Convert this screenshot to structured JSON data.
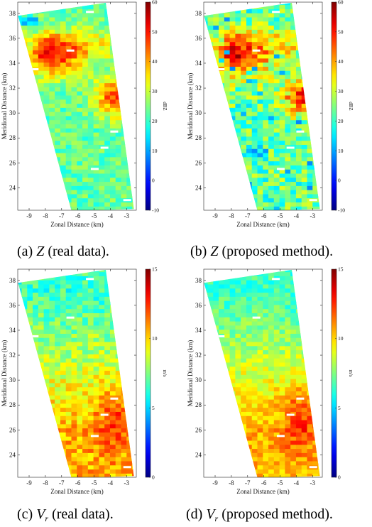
{
  "captions": {
    "a": {
      "prefix": "(a) ",
      "var": "Z",
      "sub": "",
      "suffix": " (real data)."
    },
    "b": {
      "prefix": "(b) ",
      "var": "Z",
      "sub": "",
      "suffix": " (proposed method)."
    },
    "c": {
      "prefix": "(c) ",
      "var": "V",
      "sub": "r",
      "suffix": " (real data)."
    },
    "d": {
      "prefix": "(d) ",
      "var": "V",
      "sub": "r",
      "suffix": " (proposed method)."
    }
  },
  "chart_data": [
    {
      "id": "a",
      "type": "heatmap",
      "variable": "reflectivity",
      "xlabel": "Zonal Distance (km)",
      "ylabel": "Meridional Distance (km)",
      "xticks": [
        -9,
        -8,
        -7,
        -6,
        -5,
        -4,
        -3
      ],
      "yticks": [
        24,
        26,
        28,
        30,
        32,
        34,
        36,
        38
      ],
      "xlim": [
        -9.7,
        -2.4
      ],
      "ylim": [
        22.2,
        38.9
      ],
      "colorbar": {
        "unit": "dBZ",
        "range": [
          -10,
          60
        ],
        "ticks": [
          -10,
          0,
          10,
          20,
          30,
          40,
          50,
          60
        ]
      },
      "colors": {
        "low": "#00008f",
        "high": "#800000",
        "colormap": "jet"
      },
      "field": {
        "background_dBZ": 23,
        "max_dBZ": 52,
        "core_centers_km": [
          [
            -7.5,
            34.5
          ],
          [
            -3.6,
            31.3
          ]
        ],
        "noise": "moderate"
      }
    },
    {
      "id": "b",
      "type": "heatmap",
      "variable": "reflectivity",
      "xlabel": "Zonal Distance (km)",
      "ylabel": "Meridional Distance (km)",
      "xticks": [
        -9,
        -8,
        -7,
        -6,
        -5,
        -4,
        -3
      ],
      "yticks": [
        24,
        26,
        28,
        30,
        32,
        34,
        36,
        38
      ],
      "xlim": [
        -9.7,
        -2.4
      ],
      "ylim": [
        22.2,
        38.9
      ],
      "colorbar": {
        "unit": "dBZ",
        "range": [
          -10,
          60
        ],
        "ticks": [
          -10,
          0,
          10,
          20,
          30,
          40,
          50,
          60
        ]
      },
      "colors": {
        "low": "#00008f",
        "high": "#800000",
        "colormap": "jet"
      },
      "field": {
        "background_dBZ": 23,
        "max_dBZ": 52,
        "core_centers_km": [
          [
            -7.5,
            34.5
          ],
          [
            -3.6,
            31.3
          ]
        ],
        "noise": "high"
      }
    },
    {
      "id": "c",
      "type": "heatmap",
      "variable": "radial velocity",
      "xlabel": "Zonal Distance (km)",
      "ylabel": "Meridional Distance (km)",
      "xticks": [
        -9,
        -8,
        -7,
        -6,
        -5,
        -4,
        -3
      ],
      "yticks": [
        24,
        26,
        28,
        30,
        32,
        34,
        36,
        38
      ],
      "xlim": [
        -9.7,
        -2.4
      ],
      "ylim": [
        22.2,
        38.9
      ],
      "colorbar": {
        "unit": "m/s",
        "range": [
          0,
          15
        ],
        "ticks": [
          0,
          5,
          10,
          15
        ]
      },
      "colors": {
        "low": "#00008f",
        "high": "#800000",
        "colormap": "jet"
      },
      "field": {
        "north_m_s": 6.5,
        "south_m_s": 10.5,
        "max_m_s": 12,
        "core_center_km": [
          -3.8,
          27
        ]
      }
    },
    {
      "id": "d",
      "type": "heatmap",
      "variable": "radial velocity",
      "xlabel": "Zonal Distance (km)",
      "ylabel": "Meridional Distance (km)",
      "xticks": [
        -9,
        -8,
        -7,
        -6,
        -5,
        -4,
        -3
      ],
      "yticks": [
        24,
        26,
        28,
        30,
        32,
        34,
        36,
        38
      ],
      "xlim": [
        -9.7,
        -2.4
      ],
      "ylim": [
        22.2,
        38.9
      ],
      "colorbar": {
        "unit": "m/s",
        "range": [
          0,
          15
        ],
        "ticks": [
          0,
          5,
          10,
          15
        ]
      },
      "colors": {
        "low": "#00008f",
        "high": "#800000",
        "colormap": "jet"
      },
      "field": {
        "north_m_s": 6.5,
        "south_m_s": 10.5,
        "max_m_s": 12,
        "core_center_km": [
          -3.8,
          27
        ]
      }
    }
  ]
}
